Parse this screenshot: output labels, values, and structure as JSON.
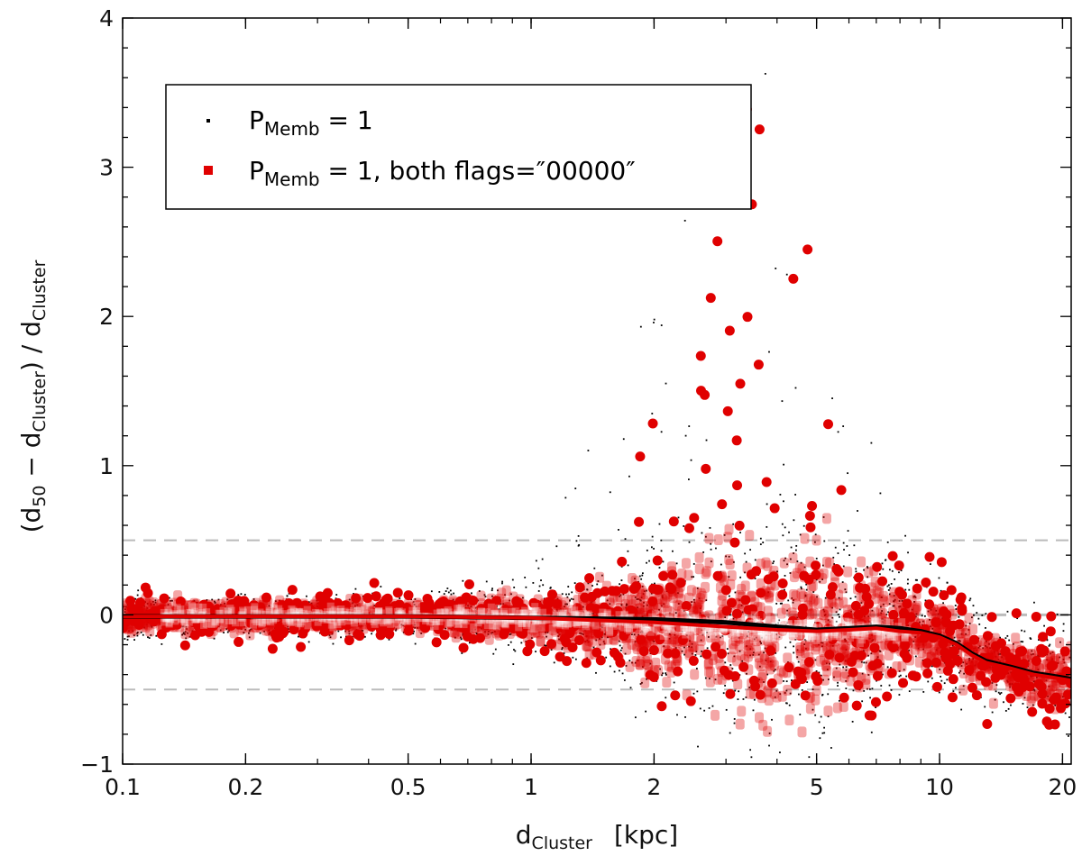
{
  "chart_data": {
    "type": "scatter",
    "x_scale": "log",
    "xlim": [
      0.1,
      21
    ],
    "ylim": [
      -1,
      4
    ],
    "xlabel": {
      "main": "d",
      "sub": "Cluster",
      "tail": "[kpc]"
    },
    "ylabel": {
      "p1": "(d",
      "s1": "50",
      "p2": " − d",
      "s2": "Cluster",
      "p3": ")  /  d",
      "s3": "Cluster"
    },
    "x_ticks": [
      {
        "value": 0.1,
        "label": "0.1"
      },
      {
        "value": 0.2,
        "label": "0.2"
      },
      {
        "value": 0.5,
        "label": "0.5"
      },
      {
        "value": 1,
        "label": "1"
      },
      {
        "value": 2,
        "label": "2"
      },
      {
        "value": 5,
        "label": "5"
      },
      {
        "value": 10,
        "label": "10"
      },
      {
        "value": 20,
        "label": "20"
      }
    ],
    "y_ticks": [
      {
        "value": -1,
        "label": "−1"
      },
      {
        "value": 0,
        "label": "0"
      },
      {
        "value": 1,
        "label": "1"
      },
      {
        "value": 2,
        "label": "2"
      },
      {
        "value": 3,
        "label": "3"
      },
      {
        "value": 4,
        "label": "4"
      }
    ],
    "reference_lines": [
      -0.5,
      0,
      0.5
    ],
    "legend": {
      "position": "top-left",
      "entries": [
        {
          "symbol": "black-dot",
          "main": "P",
          "sub": "Memb",
          "tail": " = 1"
        },
        {
          "symbol": "red-square",
          "main": "P",
          "sub": "Memb",
          "tail": " = 1,  both flags=″00000″"
        }
      ]
    },
    "series": [
      {
        "name": "P_Memb = 1 (running median)",
        "color": "#000000",
        "x": [
          0.1,
          0.2,
          0.5,
          1,
          2,
          3,
          4,
          5,
          6,
          7,
          8,
          9,
          10,
          11,
          12,
          13,
          15,
          17,
          19,
          21
        ],
        "y": [
          -0.01,
          -0.01,
          -0.01,
          -0.02,
          -0.03,
          -0.05,
          -0.08,
          -0.1,
          -0.09,
          -0.08,
          -0.09,
          -0.11,
          -0.14,
          -0.19,
          -0.26,
          -0.31,
          -0.35,
          -0.39,
          -0.41,
          -0.43
        ]
      },
      {
        "name": "P_Memb = 1, both flags=\"00000\" (running median)",
        "color": "#e00000",
        "x": [
          0.1,
          0.2,
          0.5,
          1,
          2,
          3,
          4,
          5,
          6,
          7,
          8,
          9,
          10,
          11,
          12,
          13,
          15,
          17,
          19,
          21
        ],
        "y": [
          -0.01,
          -0.01,
          -0.01,
          -0.02,
          -0.05,
          -0.08,
          -0.1,
          -0.11,
          -0.1,
          -0.09,
          -0.11,
          -0.12,
          -0.15,
          -0.2,
          -0.27,
          -0.32,
          -0.36,
          -0.4,
          -0.42,
          -0.44
        ]
      }
    ],
    "colors": {
      "member": "#000000",
      "flagged": "#e00000",
      "reference": "#bbbbbb"
    }
  }
}
